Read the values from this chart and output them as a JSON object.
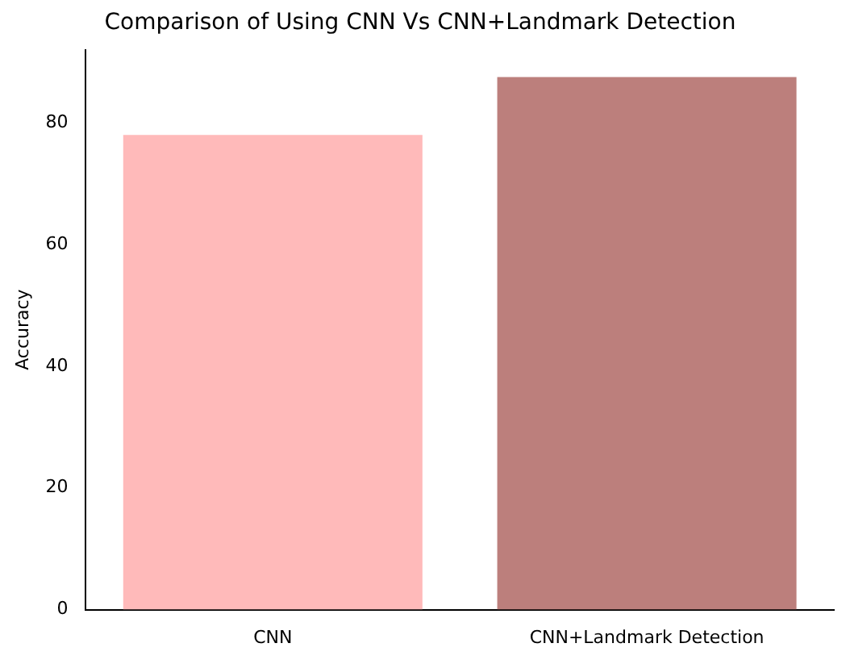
{
  "chart_data": {
    "type": "bar",
    "title": "Comparison of Using CNN Vs CNN+Landmark Detection",
    "ylabel": "Accuracy",
    "categories": [
      "CNN",
      "CNN+Landmark Detection"
    ],
    "values": [
      78,
      87.5
    ],
    "colors": [
      "#ffbaba",
      "#bc7f7c"
    ],
    "ylim": [
      0,
      92
    ],
    "yticks": [
      0,
      20,
      40,
      60,
      80
    ],
    "grid": false,
    "legend": false
  }
}
